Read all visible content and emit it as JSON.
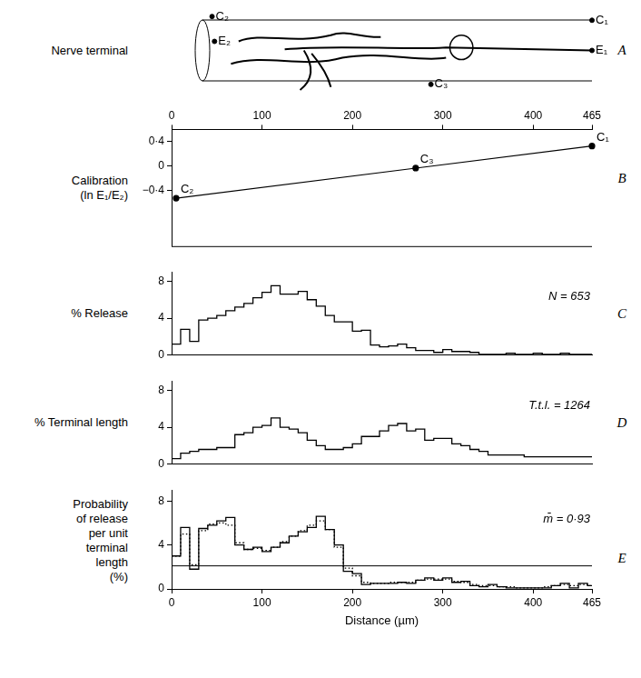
{
  "chart_data": [
    {
      "panel": "A",
      "type": "scatter",
      "y_label": "Nerve terminal",
      "points": [
        {
          "x": 5,
          "y": 0.95,
          "label": "C₂"
        },
        {
          "x": 8,
          "y": 0.62,
          "label": "E₂"
        },
        {
          "x": 465,
          "y": 0.9,
          "label": "C₁"
        },
        {
          "x": 465,
          "y": 0.5,
          "label": "E₁"
        },
        {
          "x": 270,
          "y": 0.05,
          "label": "C₃"
        }
      ],
      "xlim": [
        0,
        465
      ],
      "ylim": [
        0,
        1
      ],
      "tick_labels": false,
      "color": "#000000"
    },
    {
      "panel": "B",
      "type": "line",
      "y_label": [
        "Calibration",
        "(ln E₁/E₂)"
      ],
      "x": [
        5,
        270,
        465
      ],
      "values": [
        -0.52,
        -0.03,
        0.33
      ],
      "point_labels": [
        "C₂",
        "C₃",
        "C₁"
      ],
      "xlim": [
        0,
        465
      ],
      "xticks": [
        0,
        100,
        200,
        300,
        400,
        465
      ],
      "ylim": [
        -1.3,
        0.6
      ],
      "yticks": [
        {
          "value": -0.4,
          "label": "−0·4"
        },
        0,
        {
          "value": 0.4,
          "label": "0·4"
        }
      ],
      "color": "#000000",
      "marker": "circle",
      "tick_labels": true
    },
    {
      "panel": "C",
      "type": "histogram",
      "y_label": "% Release",
      "annotation": "N = 653",
      "bins": [
        0,
        10,
        20,
        30,
        40,
        50,
        60,
        70,
        80,
        90,
        100,
        110,
        120,
        130,
        140,
        150,
        160,
        170,
        180,
        190,
        200,
        210,
        220,
        230,
        240,
        250,
        260,
        270,
        280,
        290,
        300,
        310,
        320,
        330,
        340,
        350,
        360,
        370,
        380,
        390,
        400,
        410,
        420,
        430,
        440,
        450,
        460,
        465
      ],
      "series": [
        {
          "values": [
            1.2,
            2.8,
            1.5,
            3.8,
            4.0,
            4.3,
            4.8,
            5.2,
            5.6,
            6.2,
            6.8,
            7.5,
            6.6,
            6.6,
            6.9,
            6.0,
            5.3,
            4.3,
            3.6,
            3.6,
            2.6,
            2.7,
            1.1,
            0.9,
            1.0,
            1.2,
            0.8,
            0.5,
            0.5,
            0.3,
            0.6,
            0.4,
            0.4,
            0.3,
            0.1,
            0.1,
            0.1,
            0.2,
            0.1,
            0.1,
            0.2,
            0.1,
            0.1,
            0.2,
            0.1,
            0.1,
            0.1
          ],
          "color": "#000000",
          "line_style": "solid"
        }
      ],
      "xlim": [
        0,
        465
      ],
      "ylim": [
        0,
        9
      ],
      "yticks": [
        0,
        4,
        8
      ],
      "tick_labels": "y"
    },
    {
      "panel": "D",
      "type": "histogram",
      "y_label": "% Terminal length",
      "annotation": "T.t.l. = 1264",
      "bins": [
        0,
        10,
        20,
        30,
        40,
        50,
        60,
        70,
        80,
        90,
        100,
        110,
        120,
        130,
        140,
        150,
        160,
        170,
        180,
        190,
        200,
        210,
        220,
        230,
        240,
        250,
        260,
        270,
        280,
        290,
        300,
        310,
        320,
        330,
        340,
        350,
        360,
        370,
        380,
        390,
        400,
        410,
        420,
        430,
        440,
        450,
        460,
        465
      ],
      "series": [
        {
          "values": [
            0.6,
            1.2,
            1.4,
            1.6,
            1.6,
            1.8,
            1.8,
            3.2,
            3.4,
            4.0,
            4.2,
            5.0,
            4.0,
            3.8,
            3.4,
            2.6,
            2.0,
            1.6,
            1.6,
            1.8,
            2.2,
            3.0,
            3.0,
            3.6,
            4.2,
            4.4,
            3.6,
            3.8,
            2.6,
            2.8,
            2.8,
            2.2,
            2.0,
            1.6,
            1.4,
            1.0,
            1.0,
            1.0,
            1.0,
            0.8,
            0.8,
            0.8,
            0.8,
            0.8,
            0.8,
            0.8,
            0.8
          ],
          "color": "#000000",
          "line_style": "solid"
        }
      ],
      "xlim": [
        0,
        465
      ],
      "ylim": [
        0,
        9
      ],
      "yticks": [
        0,
        4,
        8
      ],
      "tick_labels": "y"
    },
    {
      "panel": "E",
      "type": "histogram",
      "y_label": [
        "Probability",
        "of release",
        "per unit",
        "terminal",
        "length",
        "(%)"
      ],
      "annotation": "m̄ = 0·93",
      "x_label": "Distance (µm)",
      "bins": [
        0,
        10,
        20,
        30,
        40,
        50,
        60,
        70,
        80,
        90,
        100,
        110,
        120,
        130,
        140,
        150,
        160,
        170,
        180,
        190,
        200,
        210,
        220,
        230,
        240,
        250,
        260,
        270,
        280,
        290,
        300,
        310,
        320,
        330,
        340,
        350,
        360,
        370,
        380,
        390,
        400,
        410,
        420,
        430,
        440,
        450,
        460,
        465
      ],
      "series": [
        {
          "values": [
            3.0,
            5.6,
            1.8,
            5.5,
            5.8,
            6.2,
            6.5,
            4.0,
            3.6,
            3.8,
            3.4,
            3.8,
            4.2,
            4.8,
            5.2,
            5.6,
            6.6,
            5.4,
            4.0,
            1.6,
            1.4,
            0.4,
            0.5,
            0.5,
            0.5,
            0.6,
            0.5,
            0.8,
            1.0,
            0.8,
            1.0,
            0.6,
            0.7,
            0.3,
            0.2,
            0.4,
            0.2,
            0.1,
            0.1,
            0.1,
            0.1,
            0.1,
            0.3,
            0.5,
            0.1,
            0.5,
            0.3
          ],
          "color": "#000000",
          "line_style": "solid"
        },
        {
          "values": [
            3.0,
            5.0,
            2.2,
            5.3,
            5.9,
            6.0,
            5.8,
            4.2,
            3.6,
            3.7,
            3.5,
            3.8,
            4.3,
            4.8,
            5.3,
            5.8,
            6.2,
            5.4,
            3.8,
            1.9,
            1.2,
            0.6,
            0.5,
            0.5,
            0.6,
            0.6,
            0.6,
            0.8,
            0.9,
            0.9,
            0.9,
            0.7,
            0.6,
            0.4,
            0.3,
            0.3,
            0.2,
            0.2,
            0.1,
            0.1,
            0.1,
            0.2,
            0.3,
            0.4,
            0.3,
            0.4,
            0.3
          ],
          "color": "#000000",
          "line_style": "dotted"
        }
      ],
      "reference_line": 2.1,
      "xlim": [
        0,
        465
      ],
      "xticks": [
        0,
        100,
        200,
        300,
        400,
        465
      ],
      "ylim": [
        0,
        9
      ],
      "yticks": [
        0,
        4,
        8
      ],
      "tick_labels": true
    }
  ]
}
